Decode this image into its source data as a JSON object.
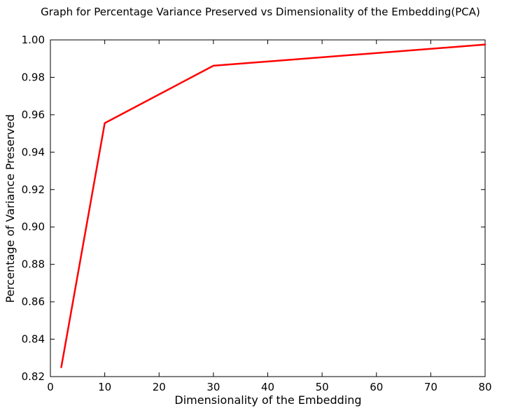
{
  "chart_data": {
    "type": "line",
    "title": "Graph for Percentage Variance Preserved vs Dimensionality of the Embedding(PCA)",
    "xlabel": "Dimensionality of the Embedding",
    "ylabel": "Percentage of Variance Preserved",
    "xlim": [
      0,
      80
    ],
    "ylim": [
      0.82,
      1.0
    ],
    "xticks": [
      0,
      10,
      20,
      30,
      40,
      50,
      60,
      70,
      80
    ],
    "yticks": [
      0.82,
      0.84,
      0.86,
      0.88,
      0.9,
      0.92,
      0.94,
      0.96,
      0.98,
      1.0
    ],
    "xtick_labels": [
      "0",
      "10",
      "20",
      "30",
      "40",
      "50",
      "60",
      "70",
      "80"
    ],
    "ytick_labels": [
      "0.82",
      "0.84",
      "0.86",
      "0.88",
      "0.90",
      "0.92",
      "0.94",
      "0.96",
      "0.98",
      "1.00"
    ],
    "grid": false,
    "series": [
      {
        "color": "#ff0000",
        "x": [
          2,
          10,
          30,
          80
        ],
        "y": [
          0.825,
          0.9555,
          0.9862,
          0.9975
        ]
      }
    ]
  }
}
